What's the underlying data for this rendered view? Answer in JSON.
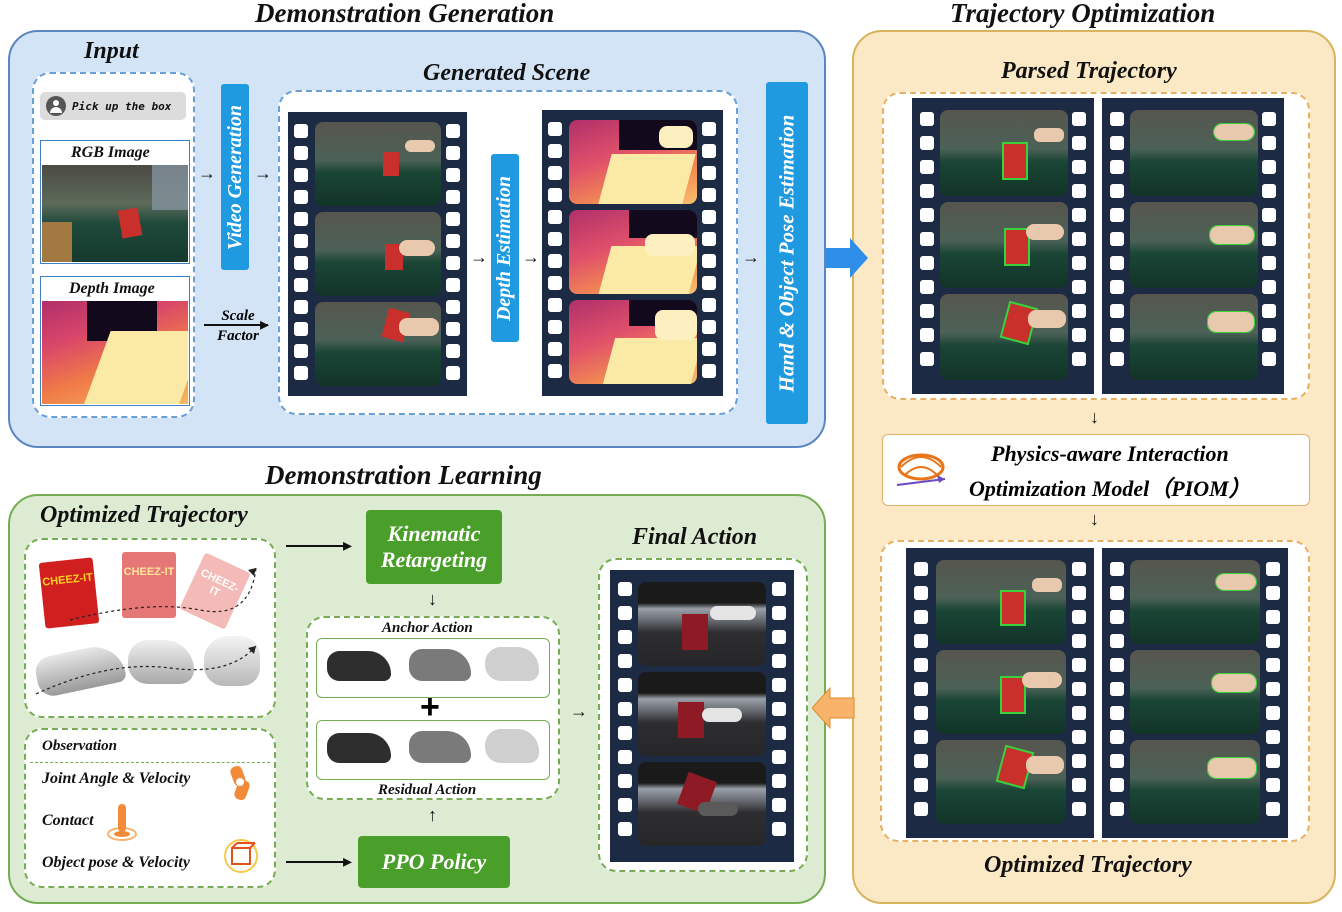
{
  "titles": {
    "demo_generation": "Demonstration Generation",
    "traj_optimization": "Trajectory Optimization",
    "demo_learning": "Demonstration Learning"
  },
  "input": {
    "title": "Input",
    "prompt": "Pick up the box",
    "rgb_label": "RGB Image",
    "depth_label": "Depth Image",
    "scale_factor": "Scale\nFactor"
  },
  "steps": {
    "video_generation": "Video Generation",
    "generated_scene": "Generated Scene",
    "depth_estimation": "Depth Estimation",
    "pose_estimation": "Hand & Object Pose Estimation"
  },
  "traj": {
    "parsed": "Parsed Trajectory",
    "piom_line1": "Physics-aware Interaction",
    "piom_line2": "Optimization Model（PIOM）",
    "optimized": "Optimized Trajectory"
  },
  "learning": {
    "optimized_traj": "Optimized Trajectory",
    "kinematic": "Kinematic Retargeting",
    "anchor_action": "Anchor Action",
    "residual_action": "Residual Action",
    "plus": "+",
    "final_action": "Final Action",
    "ppo": "PPO Policy",
    "observation": "Observation",
    "obs_joint": "Joint Angle & Velocity",
    "obs_contact": "Contact",
    "obs_object": "Object pose & Velocity",
    "cheezit": "CHEEZ-IT"
  },
  "colors": {
    "blue_panel": "#d4e4f7",
    "orange_panel": "#fbe8c4",
    "green_panel": "#dcebd2",
    "label_blue": "#1f9ae0",
    "button_green": "#4a9e2a",
    "film": "#1c2a44"
  }
}
